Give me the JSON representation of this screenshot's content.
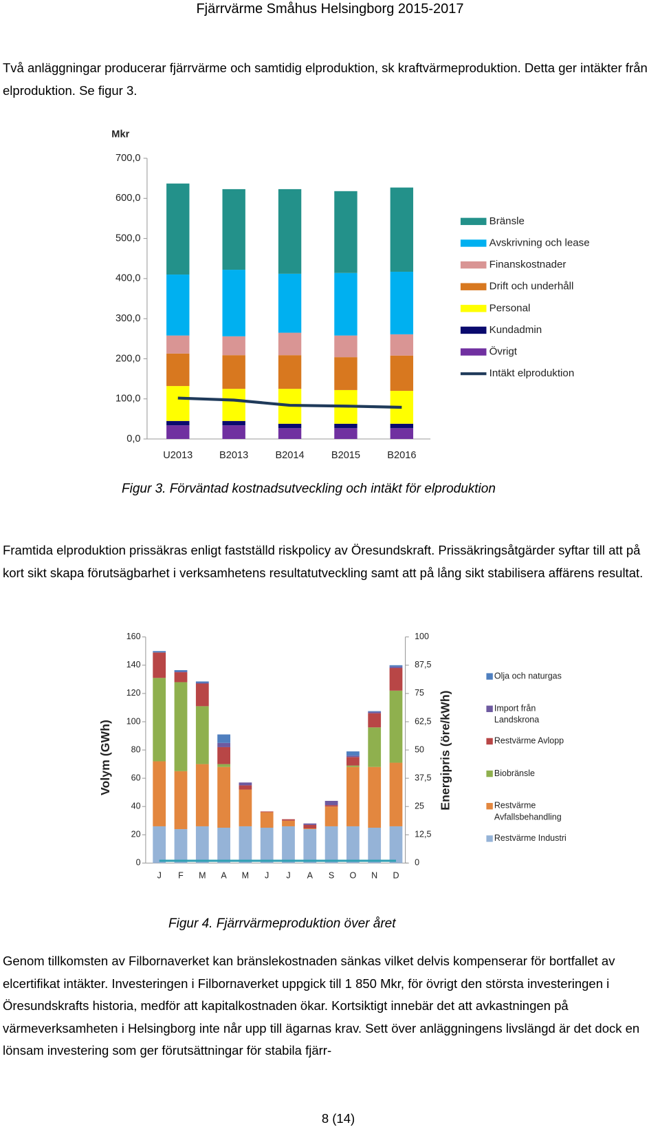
{
  "header": {
    "title": "Fjärrvärme Småhus Helsingborg 2015-2017"
  },
  "paragraphs": [
    "Två anläggningar producerar fjärrvärme och samtidig elproduktion, sk kraftvärmeproduktion. Detta ger intäkter från elproduktion. Se figur 3.",
    "Framtida elproduktion prissäkras enligt fastställd riskpolicy av Öresundskraft. Prissäkringsåtgärder syftar till att på kort sikt skapa förutsägbarhet i verksamhetens resultatutveckling samt att på lång sikt stabilisera affärens resultat.",
    "Genom tillkomsten av Filbornaverket kan bränslekostnaden sänkas vilket delvis kompenserar för bortfallet av elcertifikat intäkter. Investeringen i Filbornaverket uppgick till 1 850 Mkr, för övrigt den största investeringen i Öresundskrafts historia, medför att kapitalkostnaden ökar. Kortsiktigt innebär det att avkastningen på värmeverksamheten i Helsingborg inte når upp till ägarnas krav. Sett över anläggningens livslängd är det dock en lönsam investering som ger förutsättningar för stabila fjärr-"
  ],
  "captions": [
    "Figur 3. Förväntad kostnadsutveckling och intäkt för elproduktion",
    "Figur 4. Fjärrvärmeproduktion över året"
  ],
  "footer": "8 (14)",
  "chart_data": [
    {
      "type": "bar",
      "stacked": true,
      "y_label": "Mkr",
      "categories": [
        "U2013",
        "B2013",
        "B2014",
        "B2015",
        "B2016"
      ],
      "ylim": [
        0,
        700
      ],
      "yticks": [
        {
          "value": 0,
          "label": "0,0"
        },
        {
          "value": 100,
          "label": "100,0"
        },
        {
          "value": 200,
          "label": "200,0"
        },
        {
          "value": 300,
          "label": "300,0"
        },
        {
          "value": 400,
          "label": "400,0"
        },
        {
          "value": 500,
          "label": "500,0"
        },
        {
          "value": 600,
          "label": "600,0"
        },
        {
          "value": 700,
          "label": "700,0"
        }
      ],
      "series": [
        {
          "name": "Övrigt",
          "color": "#7030a0",
          "values": [
            34,
            34,
            27,
            27,
            27
          ]
        },
        {
          "name": "Kundadmin",
          "color": "#0a0a6e",
          "values": [
            11,
            11,
            11,
            11,
            11
          ]
        },
        {
          "name": "Personal",
          "color": "#ffff00",
          "values": [
            87,
            80,
            87,
            84,
            82
          ]
        },
        {
          "name": "Drift och underhåll",
          "color": "#d8781f",
          "values": [
            81,
            84,
            84,
            82,
            88
          ]
        },
        {
          "name": "Finanskostnader",
          "color": "#d99594",
          "values": [
            45,
            47,
            56,
            54,
            53
          ]
        },
        {
          "name": "Avskrivning och lease",
          "color": "#00b0f0",
          "values": [
            152,
            166,
            147,
            156,
            156
          ]
        },
        {
          "name": "Bränsle",
          "color": "#23918a",
          "values": [
            227,
            201,
            211,
            204,
            210
          ]
        },
        {
          "name": "Intäkt elproduktion",
          "type": "line",
          "color": "#1f3a5a",
          "values": [
            102,
            97,
            84,
            82,
            79
          ]
        }
      ]
    },
    {
      "type": "bar",
      "stacked": true,
      "y_label": "Volym (GWh)",
      "y2_label": "Energipris (öre/kWh)",
      "categories": [
        "J",
        "F",
        "M",
        "A",
        "M",
        "J",
        "J",
        "A",
        "S",
        "O",
        "N",
        "D"
      ],
      "ylim": [
        0,
        160
      ],
      "yticks": [
        0,
        20,
        40,
        60,
        80,
        100,
        120,
        140,
        160
      ],
      "y2lim": [
        0,
        100
      ],
      "y2ticks": [
        0,
        {
          "value": 12.5,
          "label": "12,5"
        },
        25,
        {
          "value": 37.5,
          "label": "37,5"
        },
        50,
        {
          "value": 62.5,
          "label": "62,5"
        },
        75,
        {
          "value": 87.5,
          "label": "87,5"
        },
        100
      ],
      "series": [
        {
          "name": "Restvärme Industri",
          "color": "#95b3d7",
          "values": [
            26,
            24,
            26,
            25,
            26,
            25,
            26,
            24,
            26,
            26,
            25,
            26
          ]
        },
        {
          "name": "Restvärme Avfallsbehandling",
          "color": "#e3873f",
          "values": [
            46,
            41,
            44,
            43,
            26,
            11,
            4,
            0.5,
            14,
            42,
            43,
            45
          ]
        },
        {
          "name": "Biobränsle",
          "color": "#8fb04e",
          "values": [
            59,
            63,
            41,
            2,
            0,
            0,
            0,
            0,
            0,
            1,
            28,
            51
          ]
        },
        {
          "name": "Restvärme Avlopp",
          "color": "#b84646",
          "values": [
            18,
            7,
            16,
            12,
            3,
            0.5,
            1,
            2.5,
            1,
            6,
            10,
            16
          ]
        },
        {
          "name": "Import från Landskrona",
          "color": "#6e5aa0",
          "values": [
            0,
            0.5,
            0.5,
            3,
            2,
            0,
            0,
            1,
            3,
            1,
            1,
            1
          ]
        },
        {
          "name": "Olja och naturgas",
          "color": "#4f7fbf",
          "values": [
            1,
            1,
            1,
            6,
            0,
            0,
            0,
            0,
            0,
            3,
            0.5,
            1
          ]
        },
        {
          "type": "line",
          "axis": "y2",
          "color": "#31a0b4",
          "values": [
            1,
            1,
            1,
            1,
            1,
            1,
            1,
            1,
            1,
            1,
            1,
            1
          ]
        }
      ]
    }
  ]
}
